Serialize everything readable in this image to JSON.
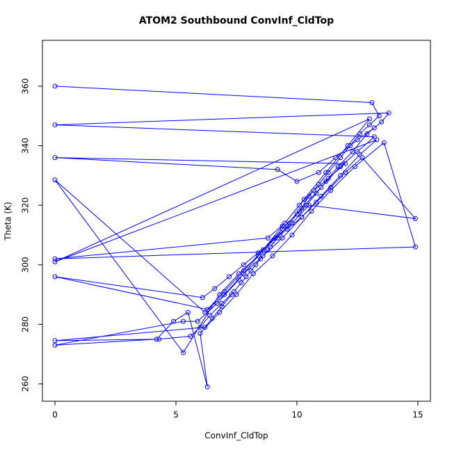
{
  "chart_data": {
    "type": "line",
    "markers": true,
    "title": "ATOM2 Southbound ConvInf_CldTop",
    "x_label": "ConvInf_CldTop",
    "y_label": "Theta (K)",
    "color": "#0000ff",
    "xlim": [
      -0.52,
      15.52
    ],
    "ylim": [
      254.16,
      375.4
    ],
    "xticks": [
      0,
      5,
      10,
      15
    ],
    "yticks": [
      260,
      280,
      300,
      320,
      340,
      360
    ],
    "x": [
      0,
      13.1,
      13.4,
      13.0,
      12.6,
      12.2,
      11.8,
      11.3,
      10.9,
      10.5,
      10.1,
      9.7,
      9.3,
      8.9,
      8.5,
      8.1,
      7.7,
      7.3,
      6.9,
      6.5,
      6.2,
      0,
      4.3,
      5.6,
      6.0,
      6.4,
      6.9,
      7.4,
      7.9,
      8.3,
      8.8,
      9.2,
      9.6,
      10.0,
      10.4,
      10.8,
      11.2,
      11.7,
      12.3,
      12.9,
      13.5,
      13.8,
      0,
      13.2,
      12.5,
      11.8,
      11.0,
      10.2,
      9.4,
      8.6,
      7.8,
      7.0,
      6.3,
      0,
      6.1,
      6.6,
      7.2,
      7.8,
      8.4,
      9.0,
      9.6,
      10.2,
      10.8,
      11.4,
      12.0,
      12.7,
      14.9,
      10.5,
      9.8,
      9.1,
      8.4,
      7.6,
      6.8,
      5.3,
      0,
      6.2,
      7.0,
      7.8,
      8.6,
      9.4,
      10.2,
      11.0,
      11.8,
      12.6,
      13.3,
      0,
      13.0,
      12.1,
      11.2,
      10.3,
      9.4,
      8.5,
      7.6,
      6.7,
      5.9,
      5.3,
      0,
      4.2,
      4.9,
      5.5,
      6.3,
      6.0,
      6.8,
      7.5,
      8.2,
      9.0,
      9.8,
      10.6,
      11.4,
      12.4,
      13.6,
      14.9,
      0,
      8.8,
      9.5,
      10.1,
      10.7,
      11.3,
      12.0,
      0,
      9.2,
      10.0,
      10.9,
      11.6,
      12.5,
      13.2
    ],
    "series": [
      {
        "name": "Theta",
        "values": [
          360,
          354.5,
          350,
          347,
          344,
          340,
          336,
          331,
          327,
          323,
          318,
          314,
          310,
          306,
          302,
          298,
          294,
          290,
          286,
          282,
          279,
          274.5,
          275,
          276,
          279,
          283,
          287,
          291,
          296,
          300,
          305,
          309,
          313,
          317,
          320,
          324,
          328,
          333,
          338,
          344,
          348,
          351,
          347,
          343,
          338,
          333,
          326,
          319,
          312,
          305,
          298,
          291,
          285,
          296,
          289,
          292,
          296,
          300,
          304,
          308,
          312,
          316,
          321,
          326,
          331,
          336,
          315.5,
          320,
          314,
          309,
          303,
          297,
          290,
          270.5,
          328.5,
          284,
          290,
          297,
          303,
          309,
          316,
          323,
          330,
          337,
          342,
          301,
          349,
          340,
          331,
          322,
          313,
          304,
          295,
          287,
          281,
          281,
          273,
          275,
          281,
          284,
          259,
          277,
          284,
          290,
          297,
          303,
          310,
          318,
          325,
          333,
          341,
          306,
          302,
          309,
          314,
          320,
          325,
          329,
          334,
          336,
          332,
          328,
          331,
          336,
          342,
          346
        ]
      }
    ]
  }
}
